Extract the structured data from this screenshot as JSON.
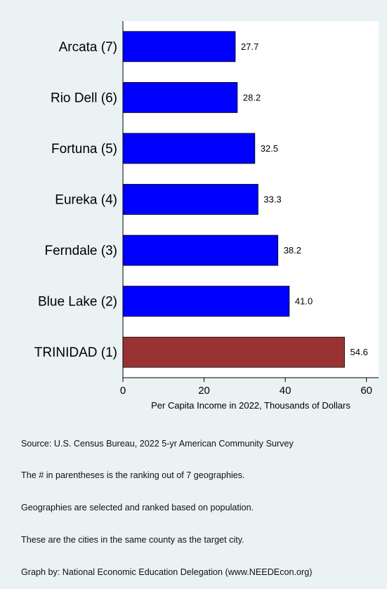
{
  "chart_data": {
    "type": "bar",
    "orientation": "horizontal",
    "categories": [
      "Arcata  (7)",
      "Rio Dell  (6)",
      "Fortuna  (5)",
      "Eureka  (4)",
      "Ferndale  (3)",
      "Blue Lake  (2)",
      "TRINIDAD  (1)"
    ],
    "values": [
      27.7,
      28.2,
      32.5,
      33.3,
      38.2,
      41.0,
      54.6
    ],
    "value_labels": [
      "27.7",
      "28.2",
      "32.5",
      "33.3",
      "38.2",
      "41.0",
      "54.6"
    ],
    "highlight_index": 6,
    "xlabel": "Per Capita Income in 2022, Thousands of Dollars",
    "x_ticks": [
      0,
      20,
      40,
      60
    ],
    "x_tick_labels": [
      "0",
      "20",
      "40",
      "60"
    ],
    "xlim": [
      0,
      63
    ],
    "grid": false,
    "colors": {
      "bar": "#0000ff",
      "highlight": "#993333",
      "plot_bg": "#ffffff",
      "page_bg": "#eaf2f3"
    }
  },
  "notes": [
    "Source: U.S. Census Bureau, 2022 5-yr American Community Survey",
    "The # in parentheses is the ranking out of 7 geographies.",
    "Geographies are selected and ranked based on population.",
    "These are the cities in the same county as the target city.",
    "Graph by: National Economic Education Delegation (www.NEEDEcon.org)"
  ]
}
